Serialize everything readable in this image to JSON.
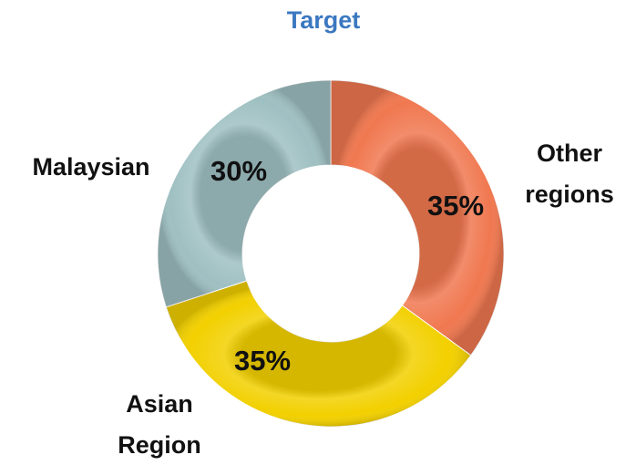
{
  "chart_data": {
    "type": "donut",
    "title": "Target",
    "categories": [
      "Other regions",
      "Asian Region",
      "Malaysian"
    ],
    "values": [
      35,
      35,
      30
    ],
    "value_labels": [
      "35%",
      "35%",
      "30%"
    ],
    "colors": [
      "#f07850",
      "#f2d000",
      "#9fc0c2"
    ]
  }
}
